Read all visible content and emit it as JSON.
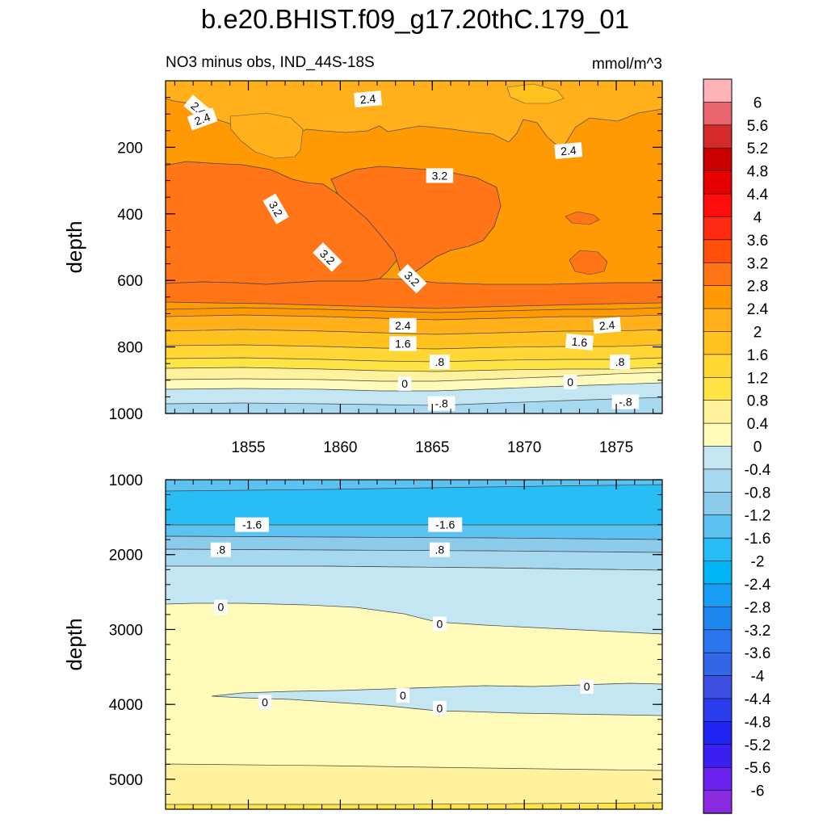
{
  "chart_data": {
    "type": "heatmap",
    "title": "b.e20.BHIST.f09_g17.20thC.179_01",
    "subtitle_left": "NO3 minus obs, IND_44S-18S",
    "subtitle_right": "mmol/m^3",
    "units": "mmol/m^3",
    "x_range": [
      1850.5,
      1877.5
    ],
    "x_ticks": [
      {
        "value": 1855,
        "label": "1855"
      },
      {
        "value": 1860,
        "label": "1860"
      },
      {
        "value": 1865,
        "label": "1865"
      },
      {
        "value": 1870,
        "label": "1870"
      },
      {
        "value": 1875,
        "label": "1875"
      }
    ],
    "panels": [
      {
        "id": "upper",
        "ylabel": "depth",
        "ylim": [
          0,
          1000
        ],
        "y_ticks": [
          {
            "value": 200,
            "label": "200"
          },
          {
            "value": 400,
            "label": "400"
          },
          {
            "value": 600,
            "label": "600"
          },
          {
            "value": 800,
            "label": "800"
          },
          {
            "value": 1000,
            "label": "1000"
          }
        ],
        "depth_profile": [
          {
            "depth": 0,
            "value": 2.2
          },
          {
            "depth": 60,
            "value": 2.45
          },
          {
            "depth": 150,
            "value": 2.5
          },
          {
            "depth": 260,
            "value": 3.1
          },
          {
            "depth": 500,
            "value": 3.2
          },
          {
            "depth": 640,
            "value": 2.8
          },
          {
            "depth": 700,
            "value": 2.2
          },
          {
            "depth": 780,
            "value": 1.5
          },
          {
            "depth": 840,
            "value": 0.8
          },
          {
            "depth": 890,
            "value": 0.2
          },
          {
            "depth": 920,
            "value": -0.2
          },
          {
            "depth": 970,
            "value": -0.7
          },
          {
            "depth": 1000,
            "value": -0.9
          }
        ],
        "contour_labels": [
          {
            "text": "2.4",
            "year": 1852.3,
            "depth": 85,
            "angle": 40
          },
          {
            "text": "2.4",
            "year": 1861.5,
            "depth": 55,
            "angle": -5
          },
          {
            "text": "2.4",
            "year": 1852.5,
            "depth": 115,
            "angle": -20
          },
          {
            "text": "2.4",
            "year": 1872.4,
            "depth": 210,
            "angle": -5
          },
          {
            "text": "3.2",
            "year": 1865.4,
            "depth": 285,
            "angle": 0
          },
          {
            "text": "3.2",
            "year": 1856.5,
            "depth": 385,
            "angle": 60
          },
          {
            "text": "3.2",
            "year": 1859.3,
            "depth": 530,
            "angle": 45
          },
          {
            "text": "3.2",
            "year": 1863.9,
            "depth": 595,
            "angle": 45
          },
          {
            "text": "2.4",
            "year": 1863.4,
            "depth": 735,
            "angle": 0
          },
          {
            "text": "2.4",
            "year": 1874.5,
            "depth": 735,
            "angle": -5
          },
          {
            "text": "1.6",
            "year": 1863.4,
            "depth": 790,
            "angle": 0
          },
          {
            "text": "1.6",
            "year": 1873.0,
            "depth": 785,
            "angle": 5
          },
          {
            "text": ".8",
            "year": 1865.4,
            "depth": 845,
            "angle": 0
          },
          {
            "text": ".8",
            "year": 1875.2,
            "depth": 845,
            "angle": 0
          },
          {
            "text": "0",
            "year": 1863.5,
            "depth": 910,
            "angle": 0
          },
          {
            "text": "0",
            "year": 1872.5,
            "depth": 905,
            "angle": 0
          },
          {
            "text": "-.8",
            "year": 1865.5,
            "depth": 970,
            "angle": 0
          },
          {
            "text": "-.8",
            "year": 1875.5,
            "depth": 965,
            "angle": 0
          }
        ]
      },
      {
        "id": "lower",
        "ylabel": "depth",
        "ylim": [
          1000,
          5400
        ],
        "y_ticks": [
          {
            "value": 1000,
            "label": "1000"
          },
          {
            "value": 2000,
            "label": "2000"
          },
          {
            "value": 3000,
            "label": "3000"
          },
          {
            "value": 4000,
            "label": "4000"
          },
          {
            "value": 5000,
            "label": "5000"
          }
        ],
        "depth_profile": [
          {
            "depth": 1000,
            "value": -1.7
          },
          {
            "depth": 1250,
            "value": -2.1
          },
          {
            "depth": 1550,
            "value": -1.8
          },
          {
            "depth": 1800,
            "value": -1.1
          },
          {
            "depth": 2150,
            "value": -0.55
          },
          {
            "depth": 2500,
            "value": -0.2
          },
          {
            "depth": 2700,
            "value": 0.1
          },
          {
            "depth": 3850,
            "value": 0.2
          },
          {
            "depth": 4000,
            "value": -0.1
          },
          {
            "depth": 4200,
            "value": 0.2
          },
          {
            "depth": 4750,
            "value": 0.35
          },
          {
            "depth": 4800,
            "value": 0.5
          },
          {
            "depth": 5300,
            "value": 0.6
          },
          {
            "depth": 5400,
            "value": 0.9
          }
        ],
        "contour_labels": [
          {
            "text": "-1.6",
            "year": 1855.2,
            "depth": 1600,
            "angle": 0
          },
          {
            "text": "-1.6",
            "year": 1865.7,
            "depth": 1600,
            "angle": 0
          },
          {
            "text": ".8",
            "year": 1853.5,
            "depth": 1935,
            "angle": 0
          },
          {
            "text": ".8",
            "year": 1865.4,
            "depth": 1935,
            "angle": 0
          },
          {
            "text": "0",
            "year": 1853.5,
            "depth": 2700,
            "angle": 0
          },
          {
            "text": "0",
            "year": 1865.4,
            "depth": 2925,
            "angle": 0
          },
          {
            "text": "0",
            "year": 1863.4,
            "depth": 3880,
            "angle": 0
          },
          {
            "text": "0",
            "year": 1873.4,
            "depth": 3760,
            "angle": 0
          },
          {
            "text": "0",
            "year": 1855.9,
            "depth": 3970,
            "angle": 0
          },
          {
            "text": "0",
            "year": 1865.4,
            "depth": 4050,
            "angle": 0
          }
        ]
      }
    ],
    "colorbar": {
      "labels": [
        "6",
        "5.6",
        "5.2",
        "4.8",
        "4.4",
        "4",
        "3.6",
        "3.2",
        "2.8",
        "2.4",
        "2",
        "1.6",
        "1.2",
        "0.8",
        "0.4",
        "0",
        "-0.4",
        "-0.8",
        "-1.2",
        "-1.6",
        "-2",
        "-2.4",
        "-2.8",
        "-3.2",
        "-3.6",
        "-4",
        "-4.4",
        "-4.8",
        "-5.2",
        "-5.6",
        "-6"
      ],
      "levels": [
        6,
        5.6,
        5.2,
        4.8,
        4.4,
        4,
        3.6,
        3.2,
        2.8,
        2.4,
        2,
        1.6,
        1.2,
        0.8,
        0.4,
        0,
        -0.4,
        -0.8,
        -1.2,
        -1.6,
        -2,
        -2.4,
        -2.8,
        -3.2,
        -3.6,
        -4,
        -4.4,
        -4.8,
        -5.2,
        -5.6,
        -6
      ],
      "colors": [
        "#ffb3b8",
        "#e8636b",
        "#d42a2a",
        "#cc0000",
        "#e60000",
        "#ff0d0d",
        "#ff2a12",
        "#ff4f0a",
        "#ff7517",
        "#ff9a05",
        "#ffb01a",
        "#ffc21e",
        "#ffd633",
        "#ffe446",
        "#fff29c",
        "#fffbba",
        "#c4e6f3",
        "#a6d8f0",
        "#8dcbed",
        "#5cc2f2",
        "#29bdf5",
        "#00b5f5",
        "#1a9ef5",
        "#1e88f0",
        "#2a74ed",
        "#3366e6",
        "#3d4fe0",
        "#2a3ced",
        "#1f24f2",
        "#3b1ff0",
        "#6b22ef",
        "#8a2be2"
      ]
    }
  }
}
